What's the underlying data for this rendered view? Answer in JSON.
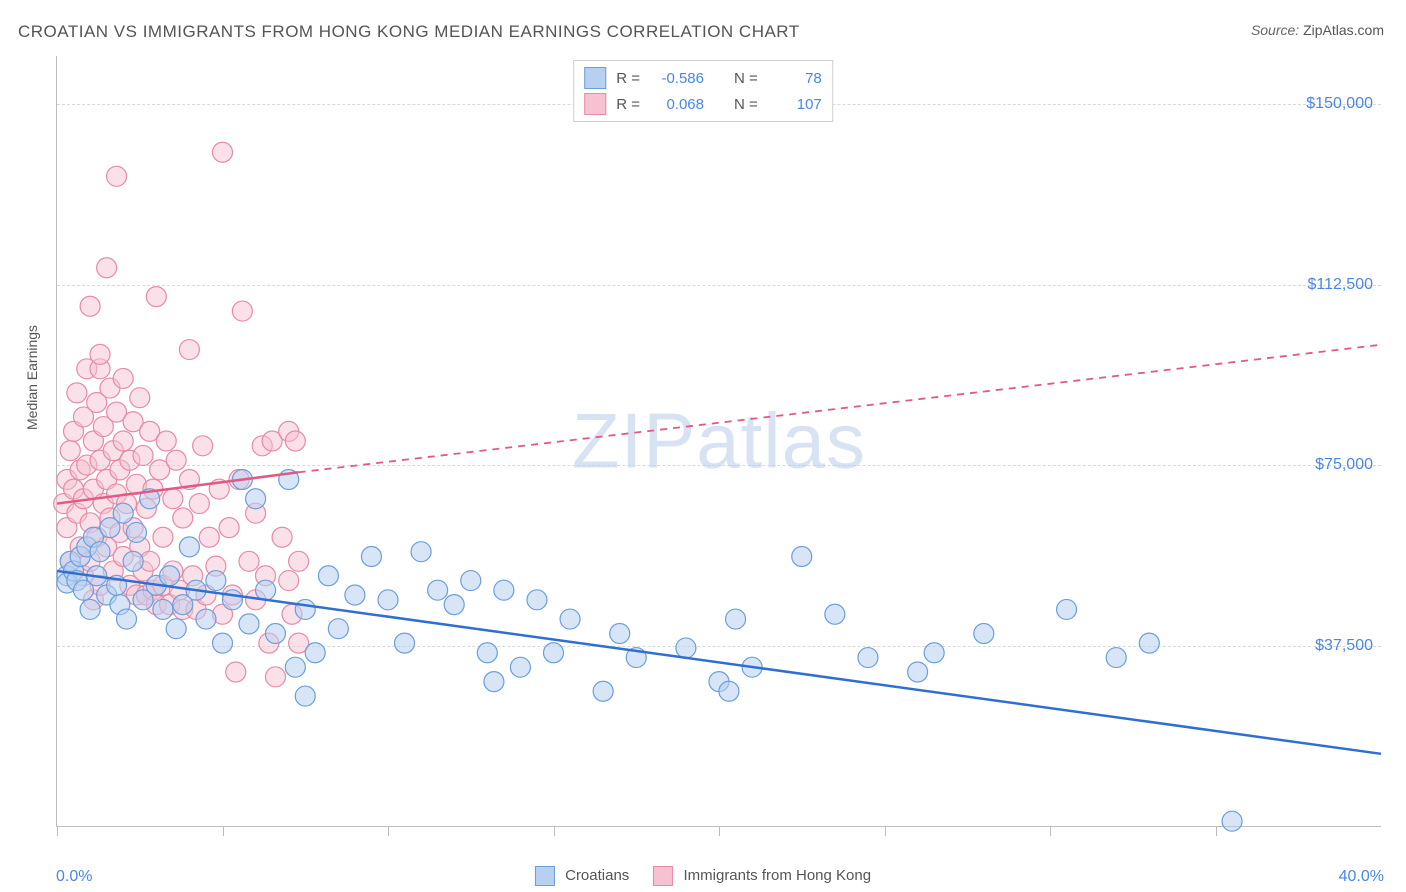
{
  "header": {
    "title": "CROATIAN VS IMMIGRANTS FROM HONG KONG MEDIAN EARNINGS CORRELATION CHART",
    "source_label": "Source:",
    "source_value": "ZipAtlas.com"
  },
  "watermark": {
    "prefix": "ZIP",
    "suffix": "atlas"
  },
  "axes": {
    "ylabel": "Median Earnings",
    "xlabel_min": "0.0%",
    "xlabel_max": "40.0%",
    "xlim": [
      0,
      40
    ],
    "ylim": [
      0,
      160000
    ],
    "y_gridlines": [
      37500,
      75000,
      112500,
      150000
    ],
    "y_gridline_labels": [
      "$37,500",
      "$75,000",
      "$112,500",
      "$150,000"
    ],
    "x_ticks": [
      0,
      5,
      10,
      15,
      20,
      25,
      30,
      35
    ],
    "grid_color": "#d9d9d9",
    "axis_color": "#bdbdbd",
    "y_tick_color": "#4a86e8"
  },
  "legend_top": {
    "series": [
      {
        "fill": "#b8d0f0",
        "stroke": "#6a9edc",
        "R_label": "R =",
        "R": "-0.586",
        "N_label": "N =",
        "N": "78"
      },
      {
        "fill": "#f6c2d1",
        "stroke": "#e88aa6",
        "R_label": "R =",
        "R": "0.068",
        "N_label": "N =",
        "N": "107"
      }
    ]
  },
  "legend_bottom": {
    "items": [
      {
        "label": "Croatians",
        "fill": "#b8d0f0",
        "stroke": "#6a9edc"
      },
      {
        "label": "Immigrants from Hong Kong",
        "fill": "#f6c2d1",
        "stroke": "#e88aa6"
      }
    ]
  },
  "series": {
    "croatians": {
      "marker_fill": "#b8d0f0",
      "marker_stroke": "#6a9edc",
      "marker_fill_opacity": 0.55,
      "marker_radius": 10,
      "trend_color": "#2f6fd0",
      "trend_dash_color": "#2f6fd0",
      "trend_width": 2.5,
      "trend_solid": {
        "x1": 0,
        "y1": 53000,
        "x2": 40,
        "y2": 15000
      },
      "points": [
        {
          "x": 0.3,
          "y": 52000
        },
        {
          "x": 0.3,
          "y": 50500
        },
        {
          "x": 0.4,
          "y": 55000
        },
        {
          "x": 0.5,
          "y": 53000
        },
        {
          "x": 0.6,
          "y": 51000
        },
        {
          "x": 0.7,
          "y": 56000
        },
        {
          "x": 0.8,
          "y": 49000
        },
        {
          "x": 0.9,
          "y": 58000
        },
        {
          "x": 1.0,
          "y": 45000
        },
        {
          "x": 1.1,
          "y": 60000
        },
        {
          "x": 1.2,
          "y": 52000
        },
        {
          "x": 1.3,
          "y": 57000
        },
        {
          "x": 1.5,
          "y": 48000
        },
        {
          "x": 1.6,
          "y": 62000
        },
        {
          "x": 1.8,
          "y": 50000
        },
        {
          "x": 1.9,
          "y": 46000
        },
        {
          "x": 2.0,
          "y": 65000
        },
        {
          "x": 2.1,
          "y": 43000
        },
        {
          "x": 2.3,
          "y": 55000
        },
        {
          "x": 2.4,
          "y": 61000
        },
        {
          "x": 2.6,
          "y": 47000
        },
        {
          "x": 2.8,
          "y": 68000
        },
        {
          "x": 3.0,
          "y": 50000
        },
        {
          "x": 3.2,
          "y": 45000
        },
        {
          "x": 3.4,
          "y": 52000
        },
        {
          "x": 3.6,
          "y": 41000
        },
        {
          "x": 3.8,
          "y": 46000
        },
        {
          "x": 4.0,
          "y": 58000
        },
        {
          "x": 4.2,
          "y": 49000
        },
        {
          "x": 4.5,
          "y": 43000
        },
        {
          "x": 4.8,
          "y": 51000
        },
        {
          "x": 5.0,
          "y": 38000
        },
        {
          "x": 5.3,
          "y": 47000
        },
        {
          "x": 5.6,
          "y": 72000
        },
        {
          "x": 5.8,
          "y": 42000
        },
        {
          "x": 6.0,
          "y": 68000
        },
        {
          "x": 6.3,
          "y": 49000
        },
        {
          "x": 6.6,
          "y": 40000
        },
        {
          "x": 7.0,
          "y": 72000
        },
        {
          "x": 7.2,
          "y": 33000
        },
        {
          "x": 7.5,
          "y": 45000
        },
        {
          "x": 7.5,
          "y": 27000
        },
        {
          "x": 7.8,
          "y": 36000
        },
        {
          "x": 8.2,
          "y": 52000
        },
        {
          "x": 8.5,
          "y": 41000
        },
        {
          "x": 9.0,
          "y": 48000
        },
        {
          "x": 9.5,
          "y": 56000
        },
        {
          "x": 10.0,
          "y": 47000
        },
        {
          "x": 10.5,
          "y": 38000
        },
        {
          "x": 11.0,
          "y": 57000
        },
        {
          "x": 11.5,
          "y": 49000
        },
        {
          "x": 12.0,
          "y": 46000
        },
        {
          "x": 12.5,
          "y": 51000
        },
        {
          "x": 13.0,
          "y": 36000
        },
        {
          "x": 13.2,
          "y": 30000
        },
        {
          "x": 13.5,
          "y": 49000
        },
        {
          "x": 14.0,
          "y": 33000
        },
        {
          "x": 14.5,
          "y": 47000
        },
        {
          "x": 15.0,
          "y": 36000
        },
        {
          "x": 15.5,
          "y": 43000
        },
        {
          "x": 16.5,
          "y": 28000
        },
        {
          "x": 17.0,
          "y": 40000
        },
        {
          "x": 17.5,
          "y": 35000
        },
        {
          "x": 19.0,
          "y": 37000
        },
        {
          "x": 20.0,
          "y": 30000
        },
        {
          "x": 20.3,
          "y": 28000
        },
        {
          "x": 20.5,
          "y": 43000
        },
        {
          "x": 21.0,
          "y": 33000
        },
        {
          "x": 22.5,
          "y": 56000
        },
        {
          "x": 23.5,
          "y": 44000
        },
        {
          "x": 24.5,
          "y": 35000
        },
        {
          "x": 26.0,
          "y": 32000
        },
        {
          "x": 26.5,
          "y": 36000
        },
        {
          "x": 28.0,
          "y": 40000
        },
        {
          "x": 30.5,
          "y": 45000
        },
        {
          "x": 32.0,
          "y": 35000
        },
        {
          "x": 33.0,
          "y": 38000
        },
        {
          "x": 35.5,
          "y": 1000
        }
      ]
    },
    "hongkong": {
      "marker_fill": "#f6c2d1",
      "marker_stroke": "#e88aa6",
      "marker_fill_opacity": 0.5,
      "marker_radius": 10,
      "trend_color": "#e05a84",
      "trend_width": 2.5,
      "trend_solid": {
        "x1": 0,
        "y1": 67000,
        "x2": 7.3,
        "y2": 73500
      },
      "trend_dash": {
        "x1": 7.3,
        "y1": 73500,
        "x2": 40,
        "y2": 100000
      },
      "points": [
        {
          "x": 0.2,
          "y": 67000
        },
        {
          "x": 0.3,
          "y": 72000
        },
        {
          "x": 0.3,
          "y": 62000
        },
        {
          "x": 0.4,
          "y": 78000
        },
        {
          "x": 0.4,
          "y": 55000
        },
        {
          "x": 0.5,
          "y": 70000
        },
        {
          "x": 0.5,
          "y": 82000
        },
        {
          "x": 0.6,
          "y": 65000
        },
        {
          "x": 0.6,
          "y": 90000
        },
        {
          "x": 0.7,
          "y": 74000
        },
        {
          "x": 0.7,
          "y": 58000
        },
        {
          "x": 0.8,
          "y": 85000
        },
        {
          "x": 0.8,
          "y": 68000
        },
        {
          "x": 0.8,
          "y": 52000
        },
        {
          "x": 0.9,
          "y": 95000
        },
        {
          "x": 0.9,
          "y": 75000
        },
        {
          "x": 1.0,
          "y": 63000
        },
        {
          "x": 1.0,
          "y": 108000
        },
        {
          "x": 1.0,
          "y": 55000
        },
        {
          "x": 1.1,
          "y": 80000
        },
        {
          "x": 1.1,
          "y": 70000
        },
        {
          "x": 1.1,
          "y": 47000
        },
        {
          "x": 1.2,
          "y": 88000
        },
        {
          "x": 1.2,
          "y": 60000
        },
        {
          "x": 1.3,
          "y": 76000
        },
        {
          "x": 1.3,
          "y": 95000
        },
        {
          "x": 1.3,
          "y": 50000
        },
        {
          "x": 1.3,
          "y": 98000
        },
        {
          "x": 1.4,
          "y": 67000
        },
        {
          "x": 1.4,
          "y": 83000
        },
        {
          "x": 1.5,
          "y": 72000
        },
        {
          "x": 1.5,
          "y": 58000
        },
        {
          "x": 1.5,
          "y": 116000
        },
        {
          "x": 1.6,
          "y": 91000
        },
        {
          "x": 1.6,
          "y": 64000
        },
        {
          "x": 1.7,
          "y": 78000
        },
        {
          "x": 1.7,
          "y": 53000
        },
        {
          "x": 1.8,
          "y": 86000
        },
        {
          "x": 1.8,
          "y": 69000
        },
        {
          "x": 1.8,
          "y": 135000
        },
        {
          "x": 1.9,
          "y": 74000
        },
        {
          "x": 1.9,
          "y": 61000
        },
        {
          "x": 2.0,
          "y": 93000
        },
        {
          "x": 2.0,
          "y": 56000
        },
        {
          "x": 2.0,
          "y": 80000
        },
        {
          "x": 2.1,
          "y": 67000
        },
        {
          "x": 2.2,
          "y": 76000
        },
        {
          "x": 2.2,
          "y": 50000
        },
        {
          "x": 2.3,
          "y": 84000
        },
        {
          "x": 2.3,
          "y": 62000
        },
        {
          "x": 2.4,
          "y": 71000
        },
        {
          "x": 2.4,
          "y": 48000
        },
        {
          "x": 2.5,
          "y": 89000
        },
        {
          "x": 2.5,
          "y": 58000
        },
        {
          "x": 2.6,
          "y": 77000
        },
        {
          "x": 2.6,
          "y": 53000
        },
        {
          "x": 2.7,
          "y": 66000
        },
        {
          "x": 2.7,
          "y": 48000
        },
        {
          "x": 2.8,
          "y": 82000
        },
        {
          "x": 2.8,
          "y": 55000
        },
        {
          "x": 2.9,
          "y": 70000
        },
        {
          "x": 2.9,
          "y": 49000
        },
        {
          "x": 3.0,
          "y": 110000
        },
        {
          "x": 3.0,
          "y": 46000
        },
        {
          "x": 3.1,
          "y": 74000
        },
        {
          "x": 3.2,
          "y": 60000
        },
        {
          "x": 3.2,
          "y": 50000
        },
        {
          "x": 3.3,
          "y": 80000
        },
        {
          "x": 3.4,
          "y": 46000
        },
        {
          "x": 3.5,
          "y": 68000
        },
        {
          "x": 3.5,
          "y": 53000
        },
        {
          "x": 3.6,
          "y": 76000
        },
        {
          "x": 3.7,
          "y": 49000
        },
        {
          "x": 3.8,
          "y": 64000
        },
        {
          "x": 3.8,
          "y": 45000
        },
        {
          "x": 4.0,
          "y": 72000
        },
        {
          "x": 4.0,
          "y": 99000
        },
        {
          "x": 4.1,
          "y": 52000
        },
        {
          "x": 4.2,
          "y": 45000
        },
        {
          "x": 4.3,
          "y": 67000
        },
        {
          "x": 4.4,
          "y": 79000
        },
        {
          "x": 4.5,
          "y": 48000
        },
        {
          "x": 4.6,
          "y": 60000
        },
        {
          "x": 4.8,
          "y": 54000
        },
        {
          "x": 4.9,
          "y": 70000
        },
        {
          "x": 5.0,
          "y": 44000
        },
        {
          "x": 5.0,
          "y": 140000
        },
        {
          "x": 5.2,
          "y": 62000
        },
        {
          "x": 5.3,
          "y": 48000
        },
        {
          "x": 5.4,
          "y": 32000
        },
        {
          "x": 5.5,
          "y": 72000
        },
        {
          "x": 5.6,
          "y": 107000
        },
        {
          "x": 5.8,
          "y": 55000
        },
        {
          "x": 6.0,
          "y": 65000
        },
        {
          "x": 6.0,
          "y": 47000
        },
        {
          "x": 6.2,
          "y": 79000
        },
        {
          "x": 6.3,
          "y": 52000
        },
        {
          "x": 6.4,
          "y": 38000
        },
        {
          "x": 6.5,
          "y": 80000
        },
        {
          "x": 6.6,
          "y": 31000
        },
        {
          "x": 6.8,
          "y": 60000
        },
        {
          "x": 7.0,
          "y": 82000
        },
        {
          "x": 7.0,
          "y": 51000
        },
        {
          "x": 7.1,
          "y": 44000
        },
        {
          "x": 7.2,
          "y": 80000
        },
        {
          "x": 7.3,
          "y": 55000
        },
        {
          "x": 7.3,
          "y": 38000
        }
      ]
    }
  }
}
